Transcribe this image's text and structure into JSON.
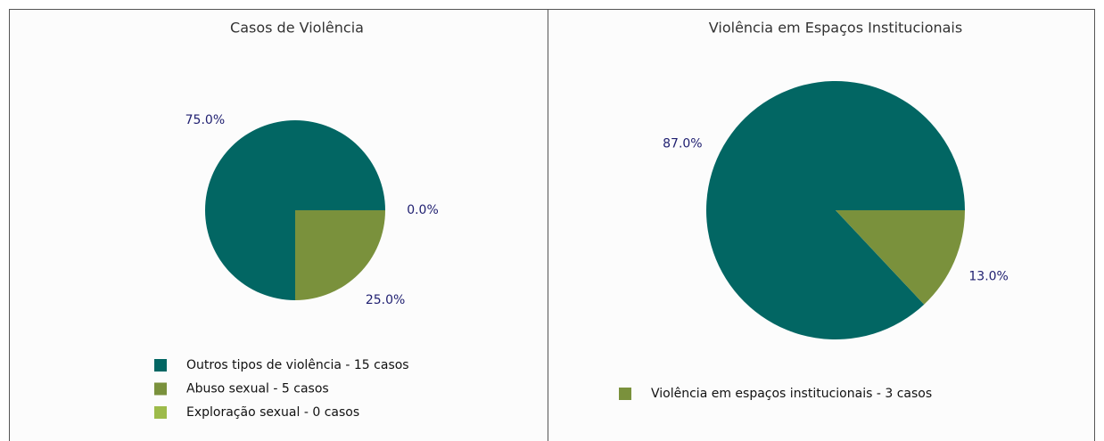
{
  "chart_data": [
    {
      "type": "pie",
      "title": "Casos de Violência",
      "categories": [
        "Outros tipos de violência - 15 casos",
        "Abuso sexual - 5 casos",
        "Exploração sexual - 0 casos"
      ],
      "values": [
        75,
        25,
        0
      ],
      "value_labels": [
        "75.0%",
        "25.0%",
        "0.0%"
      ],
      "colors": [
        "#026663",
        "#7a913c",
        "#9dbb4a"
      ]
    },
    {
      "type": "pie",
      "title": "Violência em Espaços Institucionais",
      "categories": [
        null,
        "Violência em espaços institucionais - 3 casos"
      ],
      "values": [
        87,
        13
      ],
      "value_labels": [
        "87.0%",
        "13.0%"
      ],
      "colors": [
        "#026663",
        "#7a913c"
      ]
    }
  ]
}
